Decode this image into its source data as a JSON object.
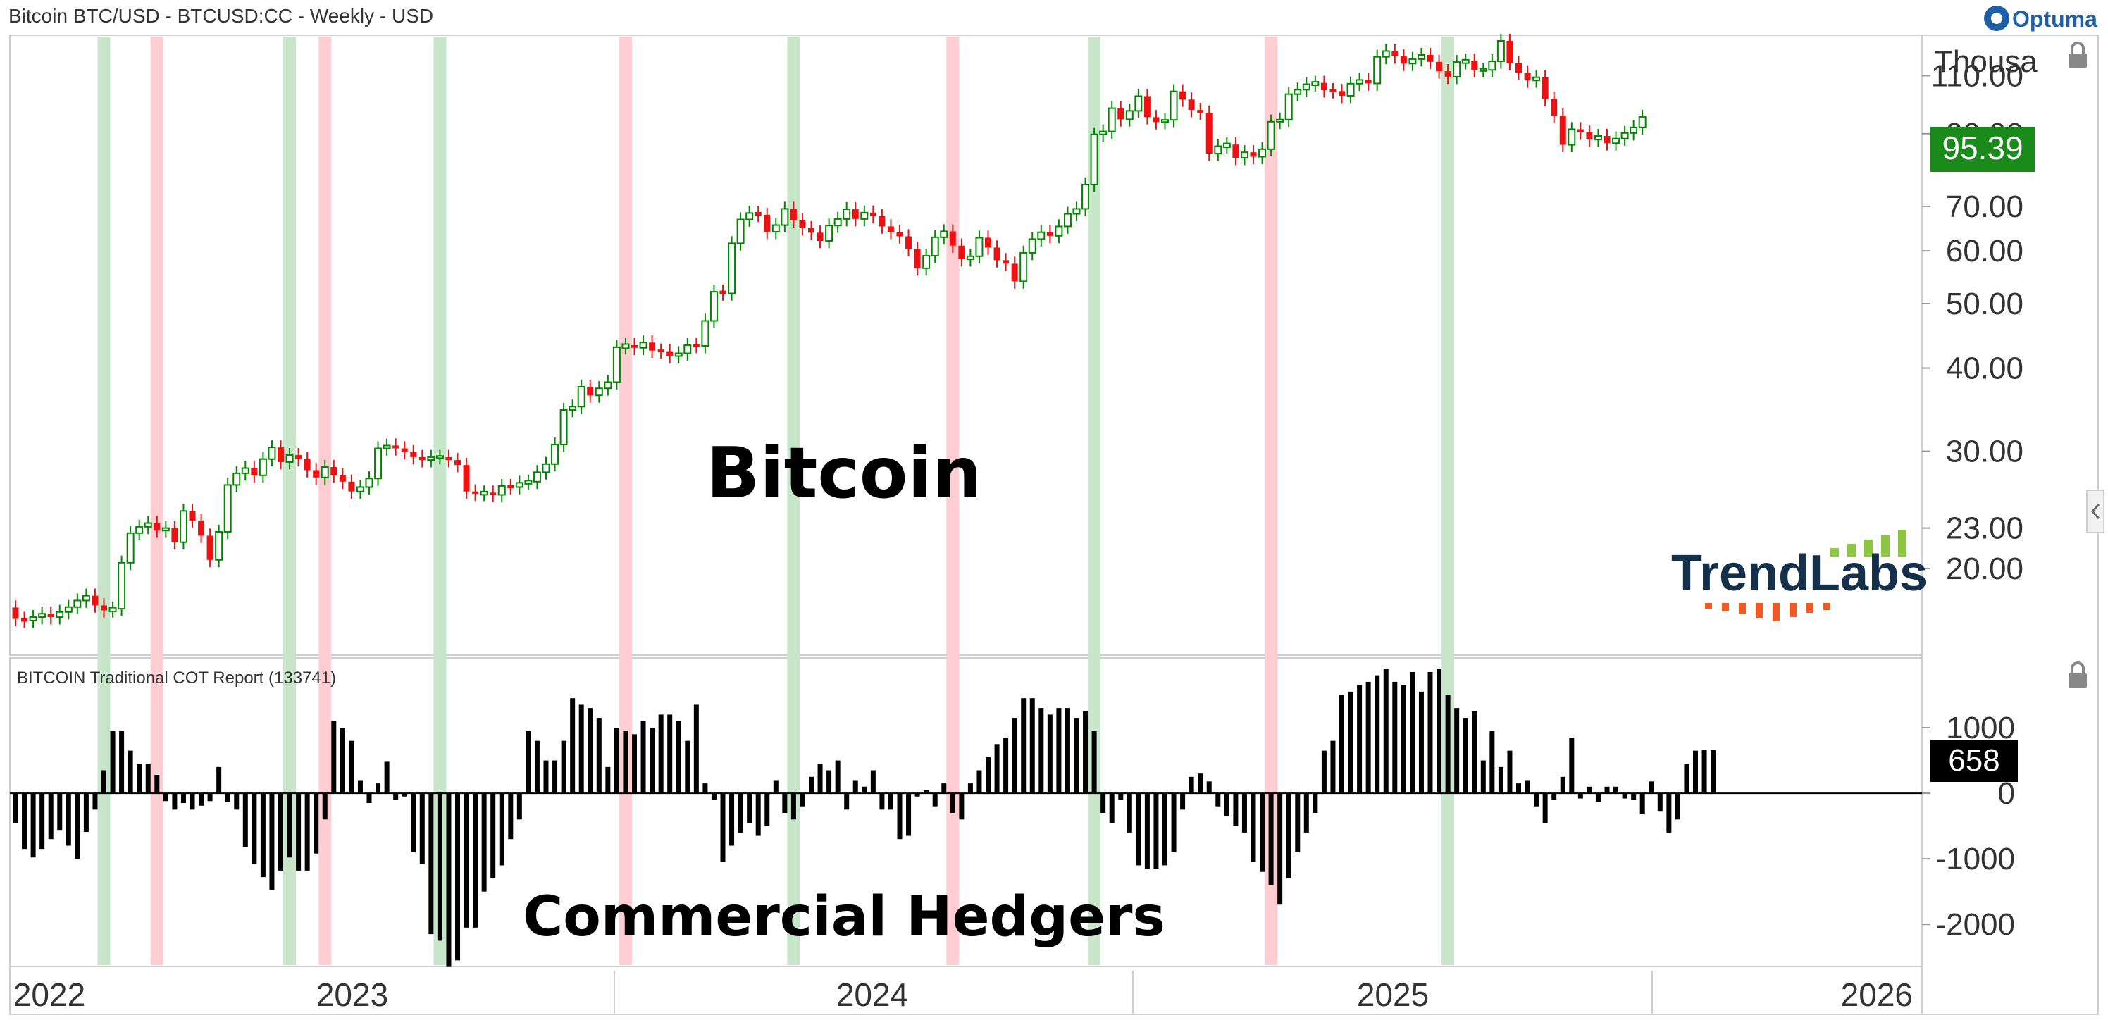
{
  "header": {
    "title": "Bitcoin BTC/USD - BTCUSD:CC - Weekly - USD",
    "brand": "Optuma"
  },
  "colors": {
    "up": "#008800",
    "down": "#ee1111",
    "green_band": "#c8e6c9",
    "red_band": "#ffcdd2",
    "last_price_bg": "#1a8a1a",
    "cot_bar": "#000000",
    "trendlabs_text": "#14304a",
    "trendlabs_green": "#8dc63f",
    "trendlabs_orange": "#f15a24"
  },
  "logo": {
    "text": "TrendLabs"
  },
  "chart_data": [
    {
      "type": "candlestick",
      "panel": "price",
      "title": "Bitcoin",
      "scale": "log",
      "units": "Thousa",
      "y_ticks": [
        20,
        23,
        30,
        40,
        50,
        60,
        70,
        90,
        110
      ],
      "y_tick_labels": [
        "20.00",
        "23.00",
        "30.00",
        "40.00",
        "50.00",
        "60.00",
        "70.00",
        "90.00",
        "110.00"
      ],
      "ylim": [
        15,
        125
      ],
      "last_value_label": "95.39",
      "x_labels": [
        "2022",
        "2023",
        "2024",
        "2025",
        "2026"
      ],
      "x_range": [
        "2022-12",
        "2026-03"
      ],
      "frequency": "weekly",
      "close_values": [
        16.8,
        16.7,
        16.9,
        17.1,
        16.9,
        17.2,
        17.5,
        17.9,
        18.2,
        17.6,
        17.3,
        17.4,
        20.4,
        22.6,
        23.1,
        23.4,
        22.8,
        23.0,
        21.9,
        24.4,
        23.6,
        22.4,
        20.6,
        22.7,
        26.7,
        27.8,
        28.3,
        27.6,
        29.2,
        30.4,
        28.9,
        29.6,
        29.2,
        28.1,
        27.4,
        28.4,
        27.6,
        27.0,
        26.1,
        26.5,
        27.3,
        30.3,
        30.6,
        30.3,
        29.9,
        29.4,
        29.1,
        29.4,
        29.4,
        29.1,
        28.6,
        26.1,
        25.9,
        26.0,
        25.8,
        26.6,
        26.5,
        26.9,
        27.0,
        27.9,
        28.7,
        30.7,
        34.6,
        35.0,
        37.5,
        36.4,
        37.3,
        38.1,
        43.0,
        43.3,
        42.9,
        43.7,
        42.5,
        42.4,
        41.7,
        42.1,
        43.3,
        43.2,
        47.1,
        52.1,
        51.8,
        61.6,
        66.9,
        68.4,
        68.0,
        64.1,
        65.6,
        69.4,
        66.7,
        64.9,
        63.9,
        62.1,
        65.5,
        67.0,
        69.3,
        67.0,
        68.5,
        67.7,
        65.3,
        64.1,
        63.1,
        60.4,
        56.5,
        59.0,
        62.9,
        64.2,
        61.1,
        58.3,
        58.9,
        62.8,
        60.7,
        58.1,
        57.4,
        54.0,
        59.6,
        62.5,
        64.0,
        63.2,
        65.3,
        68.2,
        69.4,
        75.5,
        89.8,
        90.7,
        98.3,
        94.6,
        97.4,
        102.5,
        95.3,
        93.7,
        94.4,
        104.2,
        101.3,
        97.7,
        96.8,
        84.0,
        86.2,
        86.7,
        82.8,
        84.4,
        83.1,
        85.3,
        93.8,
        94.5,
        103.2,
        104.8,
        106.8,
        107.3,
        104.6,
        104.3,
        102.6,
        107.0,
        108.4,
        107.1,
        117.4,
        119.8,
        117.6,
        114.7,
        116.5,
        118.2,
        115.4,
        111.7,
        109.6,
        115.3,
        115.8,
        112.2,
        112.2,
        115.6,
        124.1,
        114.9,
        111.2,
        108.2,
        109.4,
        101.5,
        95.8,
        86.6,
        91.4,
        90.4,
        88.2,
        89.3,
        87.1,
        88.5,
        90.2,
        92.0,
        95.4
      ],
      "shaded_weeks": [
        {
          "color": "green",
          "week": 10
        },
        {
          "color": "red",
          "week": 16
        },
        {
          "color": "green",
          "week": 31
        },
        {
          "color": "red",
          "week": 35
        },
        {
          "color": "green",
          "week": 48
        },
        {
          "color": "red",
          "week": 69
        },
        {
          "color": "green",
          "week": 88
        },
        {
          "color": "red",
          "week": 106
        },
        {
          "color": "green",
          "week": 122
        },
        {
          "color": "red",
          "week": 142
        },
        {
          "color": "green",
          "week": 162
        }
      ]
    },
    {
      "type": "bar",
      "panel": "cot",
      "title": "BITCOIN Traditional COT Report (133741)",
      "overlay_label": "Commercial Hedgers",
      "y_ticks": [
        -2000,
        -1000,
        0,
        1000
      ],
      "y_tick_labels": [
        "-2000",
        "-1000",
        "0",
        "1000"
      ],
      "ylim": [
        -2600,
        2000
      ],
      "last_value_label": "658",
      "values": [
        -450,
        -850,
        -980,
        -850,
        -700,
        -560,
        -800,
        -1000,
        -590,
        -250,
        350,
        950,
        950,
        650,
        450,
        450,
        280,
        -120,
        -250,
        -150,
        -250,
        -190,
        -120,
        400,
        -130,
        -250,
        -820,
        -1080,
        -1280,
        -1480,
        -1180,
        -980,
        -1180,
        -1180,
        -920,
        -400,
        1100,
        1000,
        800,
        200,
        -150,
        150,
        480,
        -100,
        -50,
        -900,
        -1080,
        -2150,
        -2250,
        -2650,
        -2550,
        -2050,
        -2050,
        -1500,
        -1300,
        -1100,
        -700,
        -400,
        950,
        800,
        500,
        500,
        800,
        1450,
        1350,
        1300,
        1150,
        400,
        1000,
        950,
        900,
        1100,
        1000,
        1200,
        1200,
        1100,
        800,
        1350,
        150,
        -100,
        -1050,
        -800,
        -600,
        -450,
        -650,
        -500,
        200,
        -300,
        -400,
        -200,
        250,
        450,
        350,
        500,
        -250,
        200,
        100,
        350,
        -250,
        -250,
        -700,
        -650,
        -50,
        50,
        -200,
        150,
        -300,
        -400,
        150,
        350,
        550,
        750,
        850,
        1150,
        1450,
        1450,
        1300,
        1200,
        1300,
        1300,
        1150,
        1250,
        950,
        -300,
        -450,
        -100,
        -600,
        -1100,
        -1150,
        -1150,
        -1100,
        -900,
        -250,
        250,
        300,
        180,
        -200,
        -350,
        -500,
        -600,
        -1050,
        -1200,
        -1400,
        -1700,
        -1300,
        -900,
        -600,
        -300,
        650,
        800,
        1500,
        1550,
        1650,
        1700,
        1800,
        1900,
        1700,
        1650,
        1850,
        1550,
        1850,
        1900,
        1500,
        1300,
        1150,
        1250,
        500,
        950,
        400,
        650,
        150,
        200,
        -200,
        -450,
        -100,
        250,
        850,
        -80,
        100,
        -130,
        100,
        100,
        -80,
        -100,
        -320,
        180,
        -270,
        -600,
        -400,
        450,
        650,
        658,
        658
      ]
    }
  ]
}
